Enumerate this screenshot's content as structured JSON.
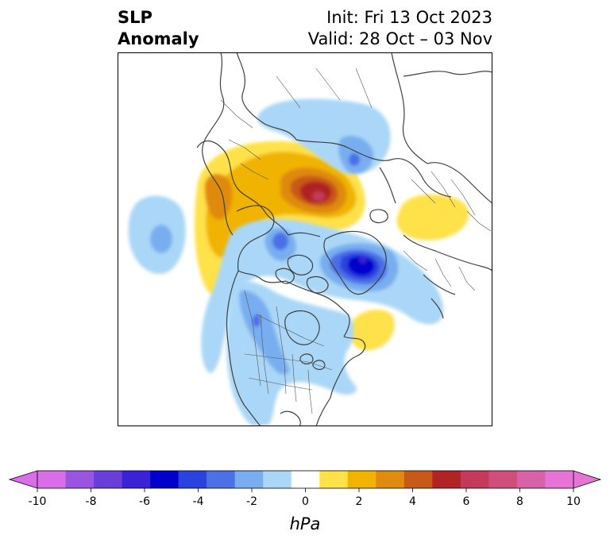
{
  "header": {
    "title_line1": "SLP",
    "title_line2": "Anomaly",
    "init": "Init: Fri 13 Oct 2023",
    "valid": "Valid: 28 Oct – 03 Nov"
  },
  "map": {
    "variable": "SLP anomaly",
    "projection": "polar-stereographic",
    "features": [
      {
        "name": "northern-europe-high",
        "sign": "positive",
        "peak_hPa": 7
      },
      {
        "name": "greenland-low",
        "sign": "negative",
        "peak_hPa": -6
      },
      {
        "name": "siberia-high",
        "sign": "positive",
        "peak_hPa": 2
      },
      {
        "name": "north-pacific-low",
        "sign": "negative",
        "peak_hPa": -3
      },
      {
        "name": "western-north-america-low",
        "sign": "negative",
        "peak_hPa": -2
      },
      {
        "name": "atlantic-high",
        "sign": "positive",
        "peak_hPa": 2
      }
    ]
  },
  "colorbar": {
    "label": "hPa",
    "ticks": [
      "-10",
      "-8",
      "-6",
      "-4",
      "-2",
      "0",
      "2",
      "4",
      "6",
      "8",
      "10"
    ],
    "colors": [
      "#d96ee8",
      "#9a55e0",
      "#6a3fd8",
      "#3b22d6",
      "#0000cc",
      "#2a43de",
      "#4c70e6",
      "#78aef0",
      "#aad7f7",
      "#ffffff",
      "#ffe14a",
      "#f0b400",
      "#df8a10",
      "#c75a18",
      "#b02424",
      "#c33a5a",
      "#cf4f7c",
      "#d862a8",
      "#e673d6"
    ],
    "extend_low_color": "#d96ee8",
    "extend_high_color": "#e673d6"
  }
}
